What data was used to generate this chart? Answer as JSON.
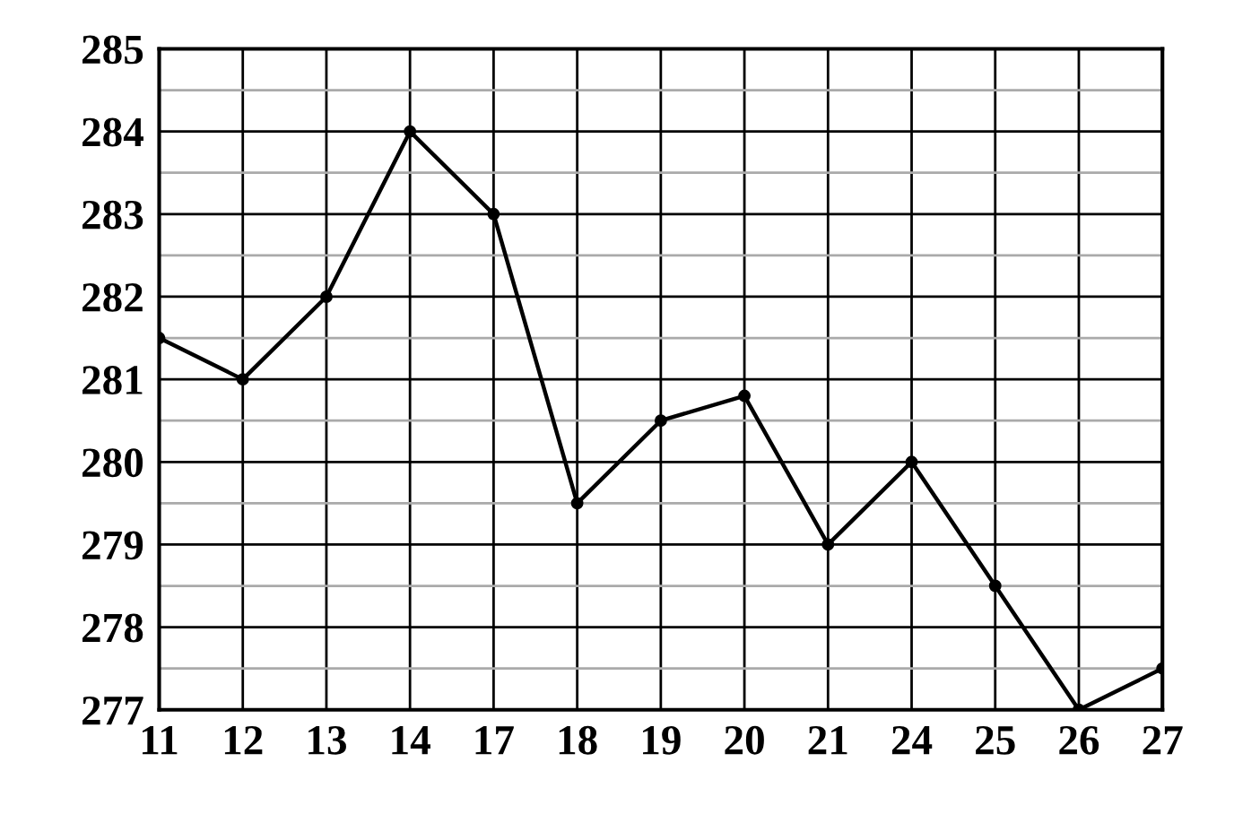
{
  "chart_data": {
    "type": "line",
    "categories": [
      "11",
      "12",
      "13",
      "14",
      "17",
      "18",
      "19",
      "20",
      "21",
      "24",
      "25",
      "26",
      "27"
    ],
    "series": [
      {
        "color": "#000000",
        "values": [
          281.5,
          281,
          282,
          284,
          283,
          279.5,
          280.5,
          280.8,
          279,
          280,
          278.5,
          277,
          277.5
        ]
      }
    ],
    "ylim": [
      277,
      285
    ],
    "yticks": [
      277,
      {
        "value": 277.5,
        "label": null
      },
      278,
      {
        "value": 278.5,
        "label": null
      },
      279,
      {
        "value": 279.5,
        "label": null
      },
      280,
      {
        "value": 280.5,
        "label": null
      },
      281,
      {
        "value": 281.5,
        "label": null
      },
      282,
      {
        "value": 282.5,
        "label": null
      },
      283,
      {
        "value": 283.5,
        "label": null
      },
      284,
      {
        "value": 284.5,
        "label": null
      },
      285
    ],
    "grid": true,
    "marker": "circle",
    "line_style": "solid",
    "legend": false
  }
}
